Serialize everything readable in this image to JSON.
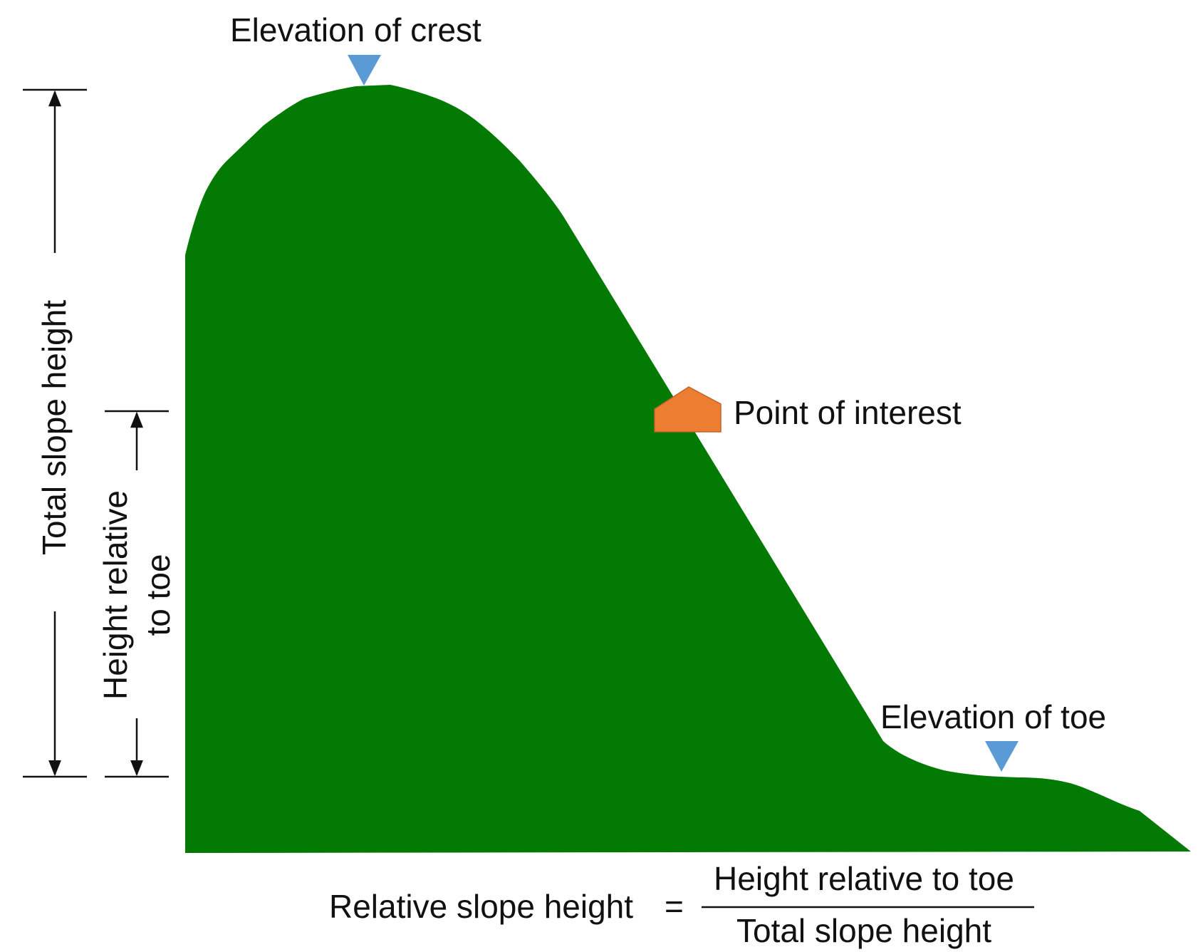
{
  "labels": {
    "crest": "Elevation of crest",
    "toe": "Elevation of toe",
    "point": "Point of interest",
    "total_height": "Total slope height",
    "relative_height_line1": "Height relative",
    "relative_height_line2": "to toe"
  },
  "formula": {
    "lhs": "Relative slope height",
    "equals": "=",
    "numerator": "Height relative to toe",
    "denominator": "Total slope height"
  },
  "colors": {
    "slope": "#037A03",
    "marker": "#5B9BD5",
    "point": "#ED7D31",
    "point_border": "#C0652A",
    "line": "#111111"
  },
  "icons": {
    "crest_marker": "down-triangle-icon",
    "toe_marker": "down-triangle-icon",
    "point_marker": "house-pentagon-icon"
  }
}
